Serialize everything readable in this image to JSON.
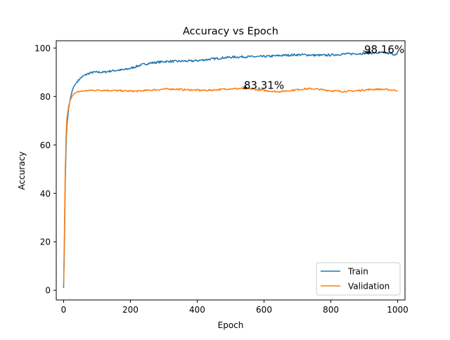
{
  "chart_data": {
    "type": "line",
    "title": "Accuracy vs Epoch",
    "xlabel": "Epoch",
    "ylabel": "Accuracy",
    "xlim": [
      -22,
      1022
    ],
    "ylim": [
      -4,
      103
    ],
    "xticks": [
      0,
      200,
      400,
      600,
      800,
      1000
    ],
    "yticks": [
      0,
      20,
      40,
      60,
      80,
      100
    ],
    "grid": false,
    "legend_position": "lower-right",
    "series": [
      {
        "name": "Train",
        "color": "#1f77b4",
        "points": [
          [
            0,
            1
          ],
          [
            2,
            15
          ],
          [
            5,
            45
          ],
          [
            8,
            62
          ],
          [
            10,
            68
          ],
          [
            15,
            75
          ],
          [
            20,
            79
          ],
          [
            25,
            82
          ],
          [
            30,
            84
          ],
          [
            40,
            86
          ],
          [
            50,
            87.5
          ],
          [
            60,
            88.5
          ],
          [
            70,
            89.2
          ],
          [
            80,
            89.7
          ],
          [
            90,
            90
          ],
          [
            100,
            90
          ],
          [
            120,
            90
          ],
          [
            140,
            90.5
          ],
          [
            160,
            90.8
          ],
          [
            180,
            91
          ],
          [
            200,
            91.6
          ],
          [
            220,
            92.5
          ],
          [
            240,
            93.3
          ],
          [
            260,
            93.8
          ],
          [
            280,
            94.1
          ],
          [
            300,
            94.4
          ],
          [
            320,
            94.5
          ],
          [
            340,
            94.5
          ],
          [
            360,
            94.6
          ],
          [
            380,
            94.6
          ],
          [
            400,
            94.8
          ],
          [
            420,
            95.1
          ],
          [
            440,
            95.4
          ],
          [
            460,
            95.7
          ],
          [
            480,
            96
          ],
          [
            500,
            96.2
          ],
          [
            520,
            96.3
          ],
          [
            540,
            96.4
          ],
          [
            560,
            96.4
          ],
          [
            580,
            96.4
          ],
          [
            600,
            96.5
          ],
          [
            620,
            96.6
          ],
          [
            640,
            96.8
          ],
          [
            660,
            97
          ],
          [
            680,
            97.1
          ],
          [
            700,
            97.2
          ],
          [
            720,
            97.2
          ],
          [
            740,
            97.1
          ],
          [
            760,
            97
          ],
          [
            780,
            97
          ],
          [
            800,
            97.1
          ],
          [
            820,
            97.3
          ],
          [
            840,
            97.5
          ],
          [
            860,
            97.6
          ],
          [
            880,
            97.7
          ],
          [
            900,
            97.8
          ],
          [
            920,
            97.9
          ],
          [
            940,
            98
          ],
          [
            960,
            98.1
          ],
          [
            980,
            97.6
          ],
          [
            1000,
            97.3
          ]
        ]
      },
      {
        "name": "Validation",
        "color": "#ff7f0e",
        "points": [
          [
            0,
            2
          ],
          [
            2,
            20
          ],
          [
            5,
            50
          ],
          [
            8,
            66
          ],
          [
            10,
            71
          ],
          [
            15,
            76
          ],
          [
            20,
            78.5
          ],
          [
            25,
            80
          ],
          [
            30,
            81
          ],
          [
            40,
            81.8
          ],
          [
            50,
            82.1
          ],
          [
            60,
            82.3
          ],
          [
            80,
            82.5
          ],
          [
            100,
            82.6
          ],
          [
            120,
            82.6
          ],
          [
            140,
            82.5
          ],
          [
            160,
            82.4
          ],
          [
            180,
            82.3
          ],
          [
            200,
            82.2
          ],
          [
            220,
            82.2
          ],
          [
            240,
            82.4
          ],
          [
            260,
            82.6
          ],
          [
            280,
            82.8
          ],
          [
            300,
            83
          ],
          [
            320,
            83.1
          ],
          [
            340,
            83
          ],
          [
            360,
            82.8
          ],
          [
            380,
            82.7
          ],
          [
            400,
            82.6
          ],
          [
            420,
            82.5
          ],
          [
            440,
            82.6
          ],
          [
            460,
            82.8
          ],
          [
            480,
            83
          ],
          [
            500,
            83.2
          ],
          [
            520,
            83.2
          ],
          [
            540,
            83.3
          ],
          [
            560,
            83.1
          ],
          [
            580,
            82.8
          ],
          [
            600,
            82.5
          ],
          [
            620,
            82.2
          ],
          [
            640,
            82
          ],
          [
            660,
            82.2
          ],
          [
            680,
            82.5
          ],
          [
            700,
            82.8
          ],
          [
            720,
            83.1
          ],
          [
            740,
            83.2
          ],
          [
            760,
            83
          ],
          [
            780,
            82.7
          ],
          [
            800,
            82.4
          ],
          [
            820,
            82.2
          ],
          [
            840,
            82.1
          ],
          [
            860,
            82.2
          ],
          [
            880,
            82.4
          ],
          [
            900,
            82.7
          ],
          [
            920,
            82.9
          ],
          [
            940,
            83
          ],
          [
            960,
            82.9
          ],
          [
            980,
            82.7
          ],
          [
            1000,
            82.5
          ]
        ]
      }
    ],
    "annotations": [
      {
        "text": "98.16%",
        "x": 920,
        "y": 98.16,
        "text_x": 960,
        "text_y": 99.4
      },
      {
        "text": "83.31%",
        "x": 550,
        "y": 83.31,
        "text_x": 600,
        "text_y": 84.6
      }
    ]
  }
}
